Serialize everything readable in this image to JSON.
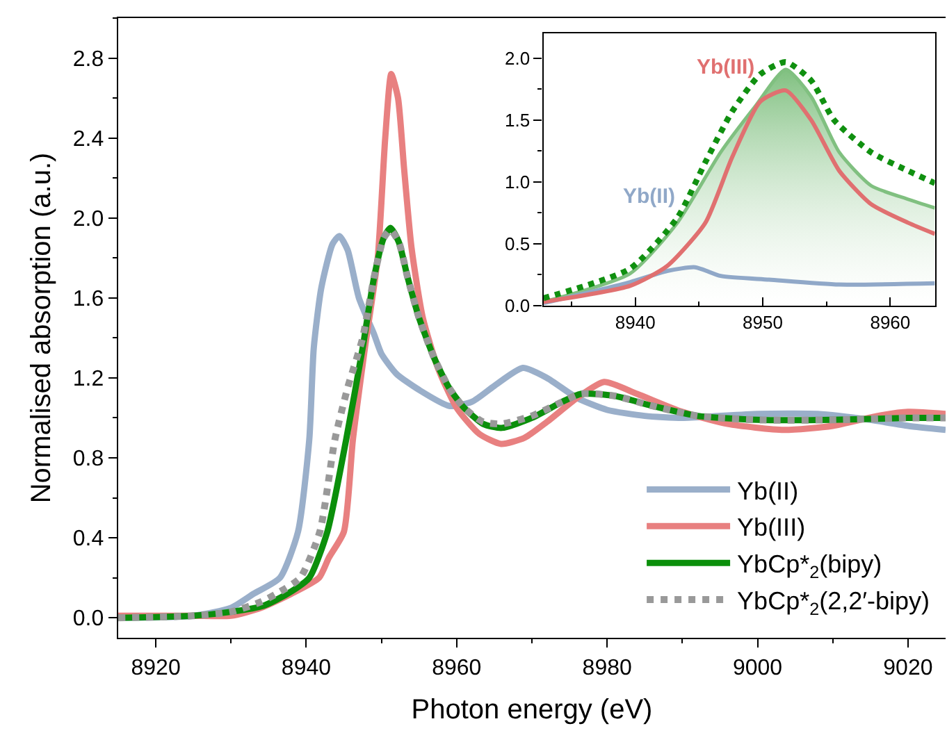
{
  "chart_data": [
    {
      "type": "line",
      "xlabel": "Photon energy (eV)",
      "ylabel": "Normalised absorption (a.u.)",
      "xlim": [
        8915,
        9025
      ],
      "xticks": [
        8920,
        8940,
        8960,
        8980,
        9000,
        9020
      ],
      "ylim": [
        -0.1,
        3.0
      ],
      "yticks": [
        {
          "value": 0,
          "label": "0.0"
        },
        0.4,
        0.8,
        1.2,
        1.6,
        {
          "value": 2,
          "label": "2.0"
        },
        2.4,
        2.8
      ],
      "legend": "bottom right",
      "series": [
        {
          "name": "Yb(II)",
          "color": "#9aafca",
          "line_style": "solid",
          "x": [
            8915,
            8925,
            8930,
            8933,
            8936.5,
            8938.9,
            8940.4,
            8941,
            8942,
            8943.5,
            8944.4,
            8945.5,
            8947,
            8949,
            8950,
            8952,
            8955,
            8959,
            8962,
            8965,
            8968.8,
            8972,
            8976,
            8980,
            8985,
            8990,
            9000,
            9008,
            9015,
            9020,
            9025
          ],
          "values": [
            0,
            0.01,
            0.05,
            0.12,
            0.2,
            0.43,
            0.89,
            1.35,
            1.65,
            1.87,
            1.91,
            1.84,
            1.6,
            1.42,
            1.32,
            1.22,
            1.14,
            1.06,
            1.08,
            1.16,
            1.25,
            1.2,
            1.1,
            1.04,
            1.01,
            1.0,
            1.02,
            1.02,
            0.99,
            0.96,
            0.94
          ]
        },
        {
          "name": "Yb(III)",
          "color": "#e88080",
          "line_style": "solid",
          "x": [
            8915,
            8925,
            8930,
            8934,
            8938,
            8941.7,
            8943,
            8945,
            8946.2,
            8947.8,
            8949.5,
            8950.5,
            8951.3,
            8952.2,
            8953,
            8954,
            8955.5,
            8957.5,
            8960,
            8963,
            8965.9,
            8969,
            8972,
            8976,
            8979.6,
            8984,
            8990,
            8996,
            9003.5,
            9010,
            9016,
            9020,
            9025
          ],
          "values": [
            0.01,
            0.01,
            0.01,
            0.05,
            0.12,
            0.2,
            0.3,
            0.43,
            0.89,
            1.35,
            1.8,
            2.4,
            2.72,
            2.6,
            2.25,
            1.85,
            1.5,
            1.25,
            1.05,
            0.92,
            0.87,
            0.9,
            0.98,
            1.1,
            1.18,
            1.12,
            1.03,
            0.97,
            0.94,
            0.96,
            1.01,
            1.03,
            1.02
          ]
        },
        {
          "name": "YbCp*$_{2}$(bipy)",
          "color": "#0b8f0b",
          "line_style": "solid",
          "x": [
            8915,
            8925,
            8930,
            8934.3,
            8937.5,
            8940.4,
            8942.8,
            8945.3,
            8947.5,
            8949,
            8950.3,
            8951.2,
            8952.3,
            8953.5,
            8955,
            8957,
            8959,
            8961,
            8963.5,
            8966,
            8970,
            8974,
            8976.5,
            8981,
            8986,
            8992,
            9000,
            9010,
            9020,
            9025
          ],
          "values": [
            0,
            0.01,
            0.03,
            0.06,
            0.12,
            0.2,
            0.43,
            0.89,
            1.35,
            1.7,
            1.9,
            1.95,
            1.88,
            1.7,
            1.5,
            1.3,
            1.15,
            1.05,
            0.97,
            0.95,
            1.0,
            1.08,
            1.12,
            1.11,
            1.06,
            1.01,
            0.99,
            0.99,
            1.0,
            1.0
          ]
        },
        {
          "name": "YbCp*$_{2}$(2,2′-bipy)",
          "color": "#999999",
          "line_style": "dotted",
          "x": [
            8915,
            8925,
            8930,
            8934,
            8936.5,
            8939.2,
            8941.8,
            8943.8,
            8945.5,
            8947.5,
            8949,
            8950.3,
            8951.2,
            8952.3,
            8953.5,
            8955,
            8957,
            8959,
            8961,
            8963.5,
            8966,
            8970,
            8974,
            8976.5,
            8981,
            8986,
            8992,
            9000,
            9010,
            9020,
            9025
          ],
          "values": [
            0,
            0.01,
            0.03,
            0.08,
            0.13,
            0.2,
            0.43,
            0.89,
            1.15,
            1.4,
            1.7,
            1.9,
            1.94,
            1.88,
            1.7,
            1.5,
            1.3,
            1.15,
            1.05,
            0.98,
            0.97,
            1.01,
            1.08,
            1.12,
            1.11,
            1.06,
            1.01,
            0.99,
            0.99,
            1.0,
            1.0
          ]
        }
      ]
    },
    {
      "type": "line",
      "xlim": [
        8932.8,
        8963.5
      ],
      "xticks": [
        8940,
        8950,
        8960
      ],
      "ylim": [
        0,
        2.2
      ],
      "yticks": [
        {
          "value": 0,
          "label": "0.0"
        },
        0.5,
        {
          "value": 1,
          "label": "1.0"
        },
        1.5,
        {
          "value": 2,
          "label": "2.0"
        }
      ],
      "legend": false,
      "series": [
        {
          "type": "area",
          "color": "#80c080",
          "line_style": "solid",
          "x": [
            8932.8,
            8939.6,
            8943.3,
            8946.7,
            8949.4,
            8951.8,
            8953.8,
            8956,
            8958.5,
            8961.4,
            8963.5
          ],
          "values": [
            0.03,
            0.26,
            0.67,
            1.24,
            1.61,
            1.91,
            1.69,
            1.24,
            0.97,
            0.86,
            0.79
          ]
        },
        {
          "name": "Yb(II)",
          "color": "#90a8c8",
          "line_style": "solid",
          "x": [
            8932.8,
            8939.6,
            8942.5,
            8944.7,
            8946.7,
            8950.5,
            8956,
            8963.5
          ],
          "values": [
            0.02,
            0.19,
            0.28,
            0.31,
            0.24,
            0.21,
            0.17,
            0.18
          ]
        },
        {
          "name": "Yb(III)",
          "color": "#e07070",
          "line_style": "solid",
          "x": [
            8932.8,
            8939.6,
            8942.5,
            8945.5,
            8947.6,
            8949.8,
            8951.8,
            8953.8,
            8956,
            8958.5,
            8961.4,
            8963.5
          ],
          "values": [
            0.03,
            0.16,
            0.32,
            0.67,
            1.2,
            1.65,
            1.74,
            1.5,
            1.09,
            0.82,
            0.67,
            0.58
          ]
        },
        {
          "color": "#109010",
          "line_style": "dotted",
          "x": [
            8932.8,
            8939.6,
            8943.3,
            8945.5,
            8947.6,
            8949.8,
            8951.8,
            8953.8,
            8955.6,
            8958.5,
            8961.4,
            8963.5
          ],
          "values": [
            0.06,
            0.3,
            0.71,
            1.16,
            1.57,
            1.87,
            1.97,
            1.82,
            1.5,
            1.24,
            1.09,
            0.99
          ]
        }
      ]
    }
  ]
}
